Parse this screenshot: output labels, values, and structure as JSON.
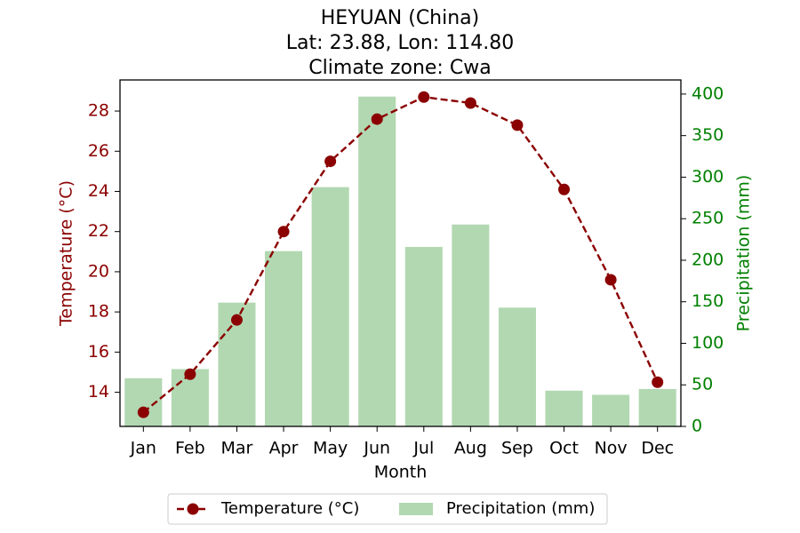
{
  "chart_data": {
    "type": "bar+line",
    "title_lines": [
      "HEYUAN (China)",
      "Lat: 23.88, Lon: 114.80",
      "Climate zone: Cwa"
    ],
    "categories": [
      "Jan",
      "Feb",
      "Mar",
      "Apr",
      "May",
      "Jun",
      "Jul",
      "Aug",
      "Sep",
      "Oct",
      "Nov",
      "Dec"
    ],
    "xlabel": "Month",
    "series": [
      {
        "name": "Temperature (°C)",
        "kind": "line",
        "axis": "left",
        "color": "#8b0000",
        "values": [
          13.0,
          14.9,
          17.6,
          22.0,
          25.5,
          27.6,
          28.7,
          28.4,
          27.3,
          24.1,
          19.6,
          14.5
        ]
      },
      {
        "name": "Precipitation (mm)",
        "kind": "bar",
        "axis": "right",
        "color": "#b2d8b2",
        "values": [
          58,
          69,
          149,
          211,
          288,
          397,
          216,
          243,
          143,
          43,
          38,
          45
        ]
      }
    ],
    "y_left": {
      "label": "Temperature (°C)",
      "color": "#8b0000",
      "ylim": [
        12.3,
        29.55
      ],
      "ticks": [
        14,
        16,
        18,
        20,
        22,
        24,
        26,
        28
      ]
    },
    "y_right": {
      "label": "Precipitation (mm)",
      "color": "#008000",
      "ylim": [
        0,
        417
      ],
      "ticks": [
        0,
        50,
        100,
        150,
        200,
        250,
        300,
        350,
        400
      ]
    },
    "legend": {
      "placement": "bottom-center"
    },
    "grid": false
  }
}
